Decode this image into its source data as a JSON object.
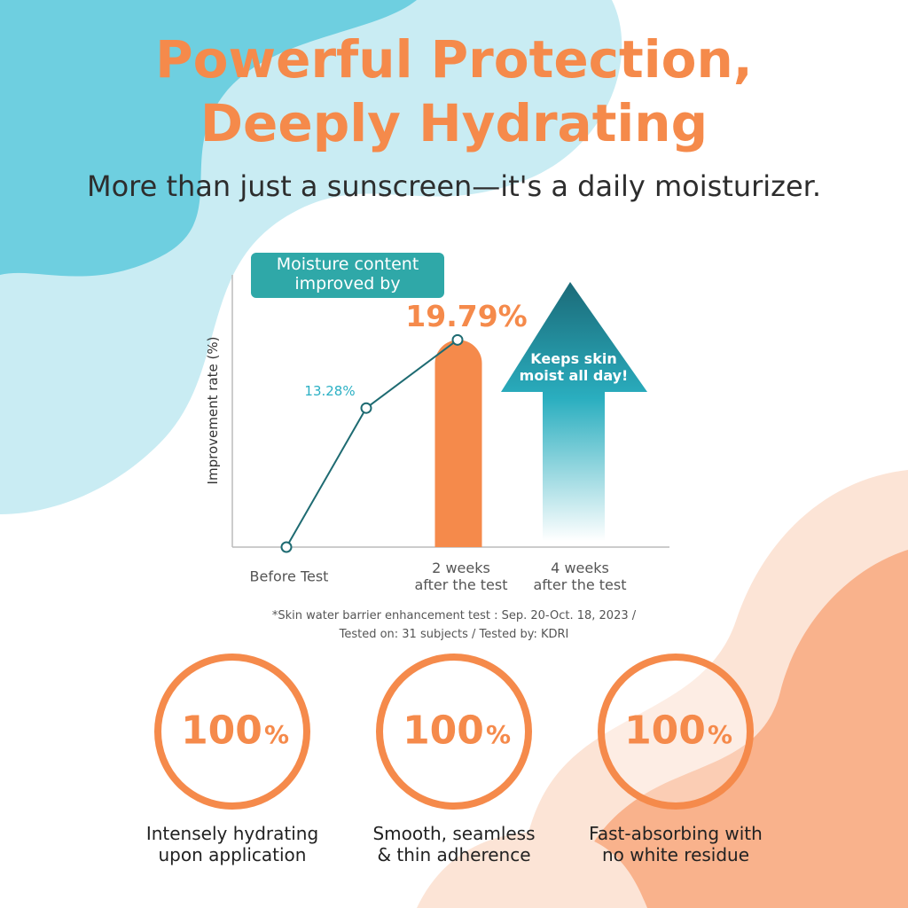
{
  "header": {
    "title_lines": [
      "Powerful Protection,",
      "Deeply Hydrating"
    ],
    "subtitle": "More than just a sunscreen—it's a daily moisturizer."
  },
  "chart_data": {
    "type": "line",
    "annotation": "Moisture content\nimproved by",
    "arrow_text": "Keeps skin\nmoist all day!",
    "y_label": "Improvement rate (%)",
    "categories": [
      "Before Test",
      null,
      "2 weeks\nafter the test",
      "4 weeks\nafter the test"
    ],
    "series": [
      {
        "type": "line",
        "color": "#1e6b72",
        "values": [
          0,
          13.28,
          19.79,
          null
        ],
        "value_labels": [
          null,
          "13.28%",
          null,
          null
        ]
      },
      {
        "type": "bar",
        "color": "#f58a4b",
        "values": [
          null,
          null,
          19.79,
          null
        ],
        "value_labels": [
          null,
          null,
          "19.79%",
          null
        ]
      }
    ],
    "ylim": [
      0,
      26
    ]
  },
  "footnote": "*Skin water barrier enhancement test : Sep. 20-Oct. 18, 2023 /\nTested on: 31 subjects / Tested by: KDRI",
  "stats": [
    {
      "number": "100",
      "unit": "%",
      "caption": "Intensely hydrating\nupon application"
    },
    {
      "number": "100",
      "unit": "%",
      "caption": "Smooth, seamless\n& thin adherence"
    },
    {
      "number": "100",
      "unit": "%",
      "caption": "Fast-absorbing with\nno white residue"
    }
  ]
}
